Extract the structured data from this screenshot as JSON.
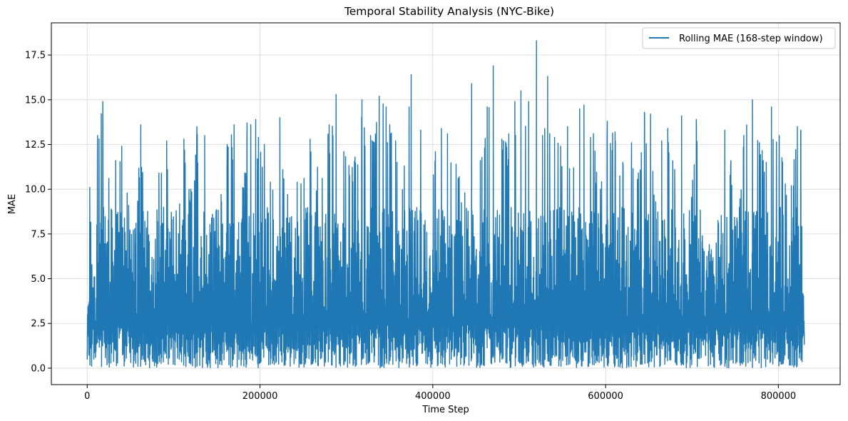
{
  "chart_data": {
    "type": "line",
    "title": "Temporal Stability Analysis (NYC-Bike)",
    "xlabel": "Time Step",
    "ylabel": "MAE",
    "xlim": [
      -41500,
      871500
    ],
    "ylim": [
      -0.92,
      19.3
    ],
    "xticks": [
      0,
      200000,
      400000,
      600000,
      800000
    ],
    "xtick_labels": [
      "0",
      "200000",
      "400000",
      "600000",
      "800000"
    ],
    "yticks": [
      0.0,
      2.5,
      5.0,
      7.5,
      10.0,
      12.5,
      15.0,
      17.5
    ],
    "ytick_labels": [
      "0.0",
      "2.5",
      "5.0",
      "7.5",
      "10.0",
      "12.5",
      "15.0",
      "17.5"
    ],
    "grid": true,
    "legend_position": "top-right",
    "series": [
      {
        "name": "Rolling MAE (168-step window)",
        "color": "#1f77b4",
        "x_range": [
          0,
          830000
        ],
        "peaks": [
          [
            0,
            0.5
          ],
          [
            3000,
            10.1
          ],
          [
            12000,
            13.0
          ],
          [
            18000,
            14.9
          ],
          [
            25000,
            10.6
          ],
          [
            33000,
            11.6
          ],
          [
            40000,
            12.4
          ],
          [
            48000,
            9.1
          ],
          [
            55000,
            7.8
          ],
          [
            62000,
            13.6
          ],
          [
            75000,
            6.2
          ],
          [
            83000,
            10.9
          ],
          [
            92000,
            12.7
          ],
          [
            103000,
            8.8
          ],
          [
            112000,
            12.8
          ],
          [
            120000,
            10.0
          ],
          [
            127000,
            13.5
          ],
          [
            136000,
            13.0
          ],
          [
            145000,
            8.6
          ],
          [
            155000,
            9.7
          ],
          [
            162000,
            12.5
          ],
          [
            170000,
            13.6
          ],
          [
            180000,
            10.1
          ],
          [
            185000,
            13.7
          ],
          [
            195000,
            13.9
          ],
          [
            205000,
            12.5
          ],
          [
            212000,
            10.4
          ],
          [
            223000,
            14.0
          ],
          [
            232000,
            9.7
          ],
          [
            243000,
            10.4
          ],
          [
            251000,
            10.6
          ],
          [
            258000,
            12.8
          ],
          [
            272000,
            10.6
          ],
          [
            280000,
            13.6
          ],
          [
            288000,
            15.3
          ],
          [
            297000,
            12.1
          ],
          [
            310000,
            11.8
          ],
          [
            318000,
            15.0
          ],
          [
            328000,
            13.0
          ],
          [
            338000,
            15.2
          ],
          [
            346000,
            14.6
          ],
          [
            357000,
            12.7
          ],
          [
            367000,
            11.3
          ],
          [
            375000,
            16.4
          ],
          [
            386000,
            13.3
          ],
          [
            393000,
            7.6
          ],
          [
            403000,
            12.1
          ],
          [
            410000,
            13.4
          ],
          [
            417000,
            13.1
          ],
          [
            427000,
            11.4
          ],
          [
            437000,
            9.8
          ],
          [
            445000,
            15.9
          ],
          [
            455000,
            11.6
          ],
          [
            463000,
            14.6
          ],
          [
            470000,
            16.9
          ],
          [
            480000,
            12.8
          ],
          [
            488000,
            13.1
          ],
          [
            495000,
            14.9
          ],
          [
            502000,
            15.5
          ],
          [
            511000,
            14.9
          ],
          [
            520000,
            18.3
          ],
          [
            527000,
            13.0
          ],
          [
            533000,
            16.3
          ],
          [
            541000,
            12.9
          ],
          [
            548000,
            12.4
          ],
          [
            556000,
            13.5
          ],
          [
            563000,
            11.2
          ],
          [
            570000,
            14.5
          ],
          [
            575000,
            14.7
          ],
          [
            586000,
            13.1
          ],
          [
            594000,
            10.0
          ],
          [
            602000,
            13.8
          ],
          [
            611000,
            13.2
          ],
          [
            620000,
            11.5
          ],
          [
            630000,
            12.6
          ],
          [
            638000,
            10.9
          ],
          [
            645000,
            14.3
          ],
          [
            652000,
            14.2
          ],
          [
            658000,
            9.3
          ],
          [
            665000,
            12.7
          ],
          [
            672000,
            13.4
          ],
          [
            680000,
            11.1
          ],
          [
            688000,
            14.1
          ],
          [
            697000,
            8.8
          ],
          [
            705000,
            13.9
          ],
          [
            712000,
            7.4
          ],
          [
            720000,
            6.9
          ],
          [
            728000,
            7.0
          ],
          [
            738000,
            13.3
          ],
          [
            745000,
            11.6
          ],
          [
            752000,
            8.4
          ],
          [
            760000,
            13.0
          ],
          [
            770000,
            15.0
          ],
          [
            778000,
            12.6
          ],
          [
            786000,
            11.5
          ],
          [
            792000,
            14.6
          ],
          [
            801000,
            13.0
          ],
          [
            808000,
            10.3
          ],
          [
            815000,
            10.2
          ],
          [
            822000,
            13.5
          ],
          [
            826000,
            13.3
          ],
          [
            830000,
            1.3
          ]
        ]
      }
    ]
  }
}
